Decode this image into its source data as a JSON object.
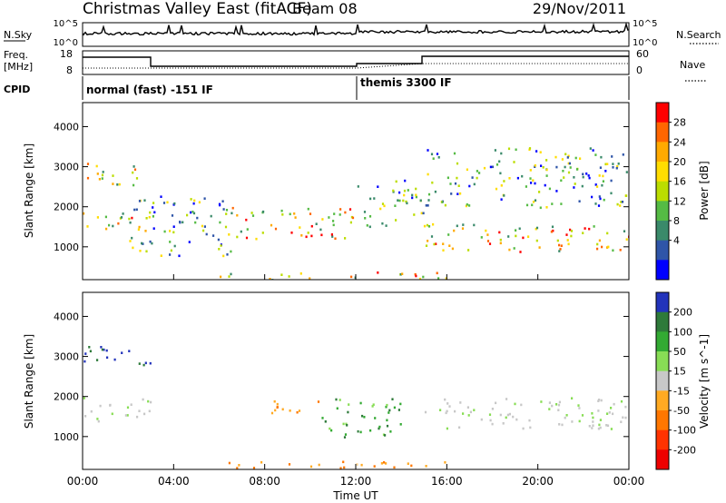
{
  "header": {
    "title": "Christmas Valley East (fitACF)",
    "beam": "Beam 08",
    "date": "29/Nov/2011"
  },
  "sky_panel": {
    "left_label": "N.Sky",
    "right_label": "N.Search",
    "ticks_left": [
      "10^5",
      "10^0"
    ],
    "ticks_right": [
      "10^5",
      "10^0"
    ]
  },
  "freq_panel": {
    "left_label_1": "Freq.",
    "left_label_2": "[MHz]",
    "right_label": "Nave",
    "ticks_left": [
      "18",
      "8"
    ],
    "ticks_right": [
      "60",
      "0"
    ]
  },
  "cpid": {
    "label": "CPID",
    "segments": [
      {
        "name": "normal (fast) -151 IF",
        "start_h": 0,
        "end_h": 12
      },
      {
        "name": "themis 3300 IF",
        "start_h": 12,
        "end_h": 24
      }
    ]
  },
  "chart_data": [
    {
      "type": "heatmap",
      "title": "Power",
      "ylabel": "Slant Range [km]",
      "xlabel": "",
      "ylim": [
        180,
        4600
      ],
      "yticks": [
        "1000",
        "2000",
        "3000",
        "4000"
      ],
      "colorbar": {
        "label": "Power [dB]",
        "ticks": [
          "28",
          "24",
          "20",
          "16",
          "12",
          "8",
          "4"
        ],
        "colors": [
          "#ff0000",
          "#ff6600",
          "#ffaa00",
          "#ffdd00",
          "#bbdd00",
          "#55bb44",
          "#3a8a6a",
          "#2f55a8",
          "#0000ff"
        ]
      },
      "echo_regions": [
        {
          "t0": 0.0,
          "t1": 3.0,
          "r0": 1400,
          "r1": 1900,
          "level": "high"
        },
        {
          "t0": 0.0,
          "t1": 2.5,
          "r0": 2500,
          "r1": 3100,
          "level": "high"
        },
        {
          "t0": 2.0,
          "t1": 6.5,
          "r0": 800,
          "r1": 2300,
          "level": "medium"
        },
        {
          "t0": 6.5,
          "t1": 12.0,
          "r0": 1200,
          "r1": 2000,
          "level": "high"
        },
        {
          "t0": 12.0,
          "t1": 15.0,
          "r0": 1500,
          "r1": 2700,
          "level": "medium"
        },
        {
          "t0": 15.0,
          "t1": 24.0,
          "r0": 900,
          "r1": 1600,
          "level": "high"
        },
        {
          "t0": 15.0,
          "t1": 24.0,
          "r0": 2000,
          "r1": 3500,
          "level": "medium"
        },
        {
          "t0": 6.0,
          "t1": 16.0,
          "r0": 200,
          "r1": 400,
          "level": "high"
        }
      ]
    },
    {
      "type": "heatmap",
      "title": "Velocity",
      "ylabel": "Slant Range [km]",
      "xlabel": "Time UT",
      "ylim": [
        180,
        4600
      ],
      "yticks": [
        "1000",
        "2000",
        "3000",
        "4000"
      ],
      "xticks": [
        "00:00",
        "04:00",
        "08:00",
        "12:00",
        "16:00",
        "20:00",
        "00:00"
      ],
      "colorbar": {
        "label": "Velocity [m s^-1]",
        "ticks": [
          "200",
          "100",
          "50",
          "15",
          "-15",
          "-50",
          "-100",
          "-200"
        ],
        "colors": [
          "#2233bb",
          "#2e7a3a",
          "#33aa33",
          "#88dd55",
          "#c8c8c8",
          "#ffaa22",
          "#ff7700",
          "#ff3300",
          "#ee0000"
        ]
      },
      "echo_regions": [
        {
          "t0": 0.0,
          "t1": 3.0,
          "r0": 2800,
          "r1": 3300,
          "level": "blue"
        },
        {
          "t0": 0.0,
          "t1": 3.0,
          "r0": 1400,
          "r1": 2000,
          "level": "grey"
        },
        {
          "t0": 8.0,
          "t1": 10.5,
          "r0": 1600,
          "r1": 2000,
          "level": "orange"
        },
        {
          "t0": 10.5,
          "t1": 14.0,
          "r0": 1000,
          "r1": 2000,
          "level": "green"
        },
        {
          "t0": 15.0,
          "t1": 24.0,
          "r0": 1200,
          "r1": 2000,
          "level": "grey"
        },
        {
          "t0": 6.0,
          "t1": 16.0,
          "r0": 200,
          "r1": 400,
          "level": "orange"
        }
      ]
    }
  ]
}
